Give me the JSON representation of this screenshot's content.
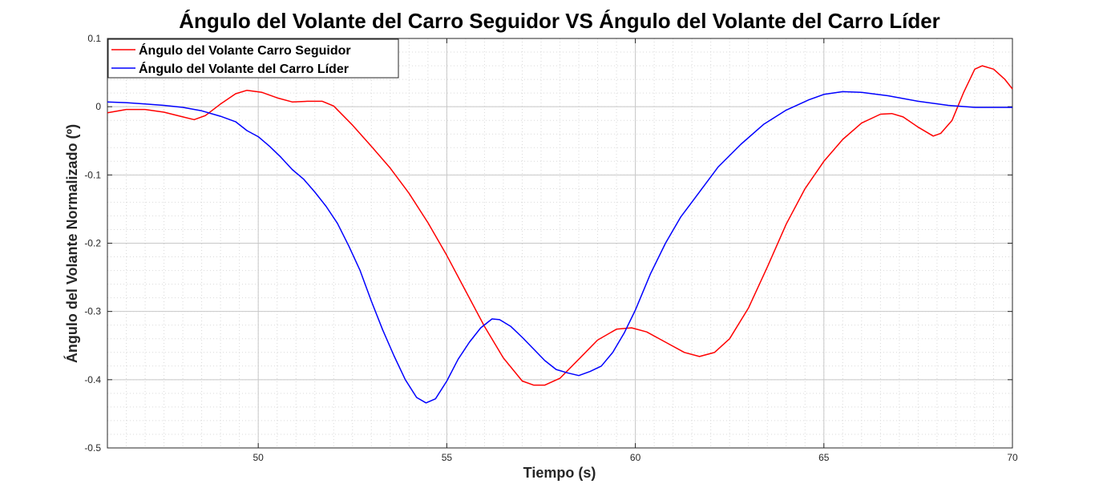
{
  "chart_data": {
    "type": "line",
    "title": "Ángulo del Volante del Carro Seguidor  VS Ángulo del Volante del Carro Líder",
    "xlabel": "Tiempo (s)",
    "ylabel": "Ángulo del Volante Normalizado (º)",
    "xlim": [
      46,
      70
    ],
    "ylim": [
      -0.5,
      0.1
    ],
    "xticks": [
      50,
      55,
      60,
      65,
      70
    ],
    "yticks": [
      -0.5,
      -0.4,
      -0.3,
      -0.2,
      -0.1,
      0,
      0.1
    ],
    "grid": true,
    "minor_grid": true,
    "legend_position": "top-left",
    "series": [
      {
        "name": "Ángulo del Volante Carro Seguidor",
        "color": "#ff0000",
        "points": [
          [
            46.0,
            -0.009
          ],
          [
            46.5,
            -0.004
          ],
          [
            47.0,
            -0.004
          ],
          [
            47.5,
            -0.008
          ],
          [
            48.0,
            -0.015
          ],
          [
            48.3,
            -0.019
          ],
          [
            48.6,
            -0.013
          ],
          [
            49.0,
            0.004
          ],
          [
            49.4,
            0.019
          ],
          [
            49.7,
            0.024
          ],
          [
            50.1,
            0.021
          ],
          [
            50.5,
            0.013
          ],
          [
            50.9,
            0.007
          ],
          [
            51.3,
            0.008
          ],
          [
            51.7,
            0.008
          ],
          [
            52.0,
            0.001
          ],
          [
            52.5,
            -0.027
          ],
          [
            53.0,
            -0.058
          ],
          [
            53.5,
            -0.09
          ],
          [
            54.0,
            -0.127
          ],
          [
            54.5,
            -0.17
          ],
          [
            55.0,
            -0.218
          ],
          [
            55.5,
            -0.27
          ],
          [
            56.0,
            -0.322
          ],
          [
            56.5,
            -0.368
          ],
          [
            57.0,
            -0.402
          ],
          [
            57.3,
            -0.408
          ],
          [
            57.6,
            -0.408
          ],
          [
            58.0,
            -0.398
          ],
          [
            58.5,
            -0.37
          ],
          [
            59.0,
            -0.342
          ],
          [
            59.5,
            -0.326
          ],
          [
            59.9,
            -0.324
          ],
          [
            60.3,
            -0.33
          ],
          [
            60.8,
            -0.345
          ],
          [
            61.3,
            -0.36
          ],
          [
            61.7,
            -0.366
          ],
          [
            62.1,
            -0.36
          ],
          [
            62.5,
            -0.34
          ],
          [
            63.0,
            -0.295
          ],
          [
            63.5,
            -0.235
          ],
          [
            64.0,
            -0.172
          ],
          [
            64.5,
            -0.12
          ],
          [
            65.0,
            -0.08
          ],
          [
            65.5,
            -0.048
          ],
          [
            66.0,
            -0.024
          ],
          [
            66.5,
            -0.011
          ],
          [
            66.8,
            -0.01
          ],
          [
            67.1,
            -0.015
          ],
          [
            67.5,
            -0.03
          ],
          [
            67.9,
            -0.043
          ],
          [
            68.1,
            -0.039
          ],
          [
            68.4,
            -0.02
          ],
          [
            68.7,
            0.02
          ],
          [
            69.0,
            0.055
          ],
          [
            69.2,
            0.06
          ],
          [
            69.5,
            0.055
          ],
          [
            69.8,
            0.04
          ],
          [
            70.0,
            0.026
          ]
        ]
      },
      {
        "name": "Ángulo del Volante del Carro Líder",
        "color": "#0000ff",
        "points": [
          [
            46.0,
            0.007
          ],
          [
            46.5,
            0.006
          ],
          [
            47.0,
            0.004
          ],
          [
            47.5,
            0.002
          ],
          [
            48.0,
            -0.001
          ],
          [
            48.5,
            -0.006
          ],
          [
            49.0,
            -0.014
          ],
          [
            49.4,
            -0.022
          ],
          [
            49.7,
            -0.035
          ],
          [
            50.0,
            -0.044
          ],
          [
            50.3,
            -0.058
          ],
          [
            50.6,
            -0.074
          ],
          [
            50.9,
            -0.092
          ],
          [
            51.2,
            -0.106
          ],
          [
            51.5,
            -0.125
          ],
          [
            51.8,
            -0.146
          ],
          [
            52.1,
            -0.171
          ],
          [
            52.4,
            -0.204
          ],
          [
            52.7,
            -0.24
          ],
          [
            53.0,
            -0.285
          ],
          [
            53.3,
            -0.327
          ],
          [
            53.6,
            -0.365
          ],
          [
            53.9,
            -0.4
          ],
          [
            54.2,
            -0.426
          ],
          [
            54.45,
            -0.434
          ],
          [
            54.7,
            -0.428
          ],
          [
            55.0,
            -0.402
          ],
          [
            55.3,
            -0.37
          ],
          [
            55.6,
            -0.345
          ],
          [
            55.9,
            -0.324
          ],
          [
            56.2,
            -0.311
          ],
          [
            56.4,
            -0.312
          ],
          [
            56.7,
            -0.322
          ],
          [
            57.0,
            -0.338
          ],
          [
            57.3,
            -0.355
          ],
          [
            57.6,
            -0.372
          ],
          [
            57.9,
            -0.385
          ],
          [
            58.2,
            -0.39
          ],
          [
            58.5,
            -0.394
          ],
          [
            58.8,
            -0.388
          ],
          [
            59.1,
            -0.38
          ],
          [
            59.4,
            -0.36
          ],
          [
            59.7,
            -0.332
          ],
          [
            60.0,
            -0.298
          ],
          [
            60.4,
            -0.245
          ],
          [
            60.8,
            -0.2
          ],
          [
            61.2,
            -0.162
          ],
          [
            61.7,
            -0.125
          ],
          [
            62.2,
            -0.088
          ],
          [
            62.8,
            -0.055
          ],
          [
            63.4,
            -0.026
          ],
          [
            64.0,
            -0.005
          ],
          [
            64.6,
            0.01
          ],
          [
            65.0,
            0.018
          ],
          [
            65.5,
            0.022
          ],
          [
            66.0,
            0.021
          ],
          [
            66.7,
            0.016
          ],
          [
            67.5,
            0.008
          ],
          [
            68.3,
            0.002
          ],
          [
            69.0,
            -0.001
          ],
          [
            69.5,
            -0.001
          ],
          [
            70.0,
            -0.001
          ]
        ]
      }
    ]
  }
}
